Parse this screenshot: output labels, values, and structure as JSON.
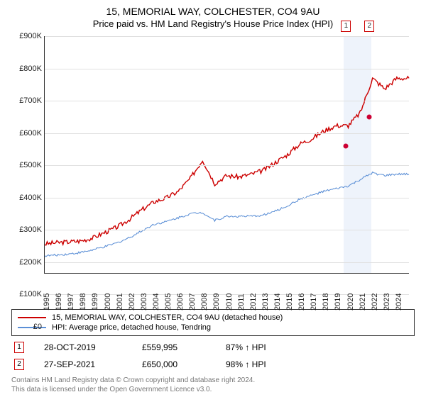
{
  "title": "15, MEMORIAL WAY, COLCHESTER, CO4 9AU",
  "subtitle": "Price paid vs. HM Land Registry's House Price Index (HPI)",
  "chart": {
    "type": "line",
    "background_color": "#ffffff",
    "grid_color": "#e0e0e0",
    "axis_color": "#333333",
    "x_years": [
      1995,
      1996,
      1997,
      1998,
      1999,
      2000,
      2001,
      2002,
      2003,
      2004,
      2005,
      2006,
      2007,
      2008,
      2009,
      2010,
      2011,
      2012,
      2013,
      2014,
      2015,
      2016,
      2017,
      2018,
      2019,
      2020,
      2021,
      2022,
      2023,
      2024
    ],
    "x_range": [
      1995,
      2025
    ],
    "y_range_k": [
      0,
      900
    ],
    "y_tick_step_k": 100,
    "y_tick_labels": [
      "£0",
      "£100K",
      "£200K",
      "£300K",
      "£400K",
      "£500K",
      "£600K",
      "£700K",
      "£800K",
      "£900K"
    ],
    "highlight_band_years": [
      2019.6,
      2021.9
    ],
    "highlight_band_color": "#eef3fb",
    "series": [
      {
        "name": "15, MEMORIAL WAY, COLCHESTER, CO4 9AU (detached house)",
        "color": "#cc0000",
        "line_width": 1.5,
        "values_k": [
          110,
          115,
          118,
          122,
          134,
          155,
          175,
          205,
          240,
          270,
          285,
          310,
          360,
          430,
          340,
          370,
          365,
          375,
          390,
          420,
          450,
          490,
          510,
          540,
          560,
          560,
          610,
          740,
          700,
          740
        ]
      },
      {
        "name": "HPI: Average price, detached house, Tendring",
        "color": "#5b8fd6",
        "line_width": 1.2,
        "values_k": [
          65,
          68,
          72,
          78,
          88,
          100,
          115,
          135,
          160,
          185,
          195,
          210,
          225,
          230,
          200,
          215,
          215,
          215,
          220,
          235,
          255,
          280,
          295,
          310,
          320,
          330,
          355,
          380,
          370,
          375
        ]
      }
    ],
    "sale_markers": [
      {
        "idx": "1",
        "year": 2019.82,
        "value_k": 560,
        "color": "#cc0033"
      },
      {
        "idx": "2",
        "year": 2021.74,
        "value_k": 650,
        "color": "#cc0033"
      }
    ]
  },
  "legend": {
    "rows": [
      {
        "color": "#cc0000",
        "label": "15, MEMORIAL WAY, COLCHESTER, CO4 9AU (detached house)"
      },
      {
        "color": "#5b8fd6",
        "label": "HPI: Average price, detached house, Tendring"
      }
    ]
  },
  "sales": [
    {
      "idx": "1",
      "date": "28-OCT-2019",
      "price": "£559,995",
      "hpi": "87% ↑ HPI"
    },
    {
      "idx": "2",
      "date": "27-SEP-2021",
      "price": "£650,000",
      "hpi": "98% ↑ HPI"
    }
  ],
  "footer_line1": "Contains HM Land Registry data © Crown copyright and database right 2024.",
  "footer_line2": "This data is licensed under the Open Government Licence v3.0."
}
